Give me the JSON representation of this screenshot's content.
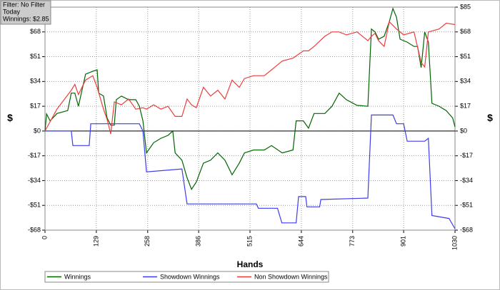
{
  "chart_data": {
    "type": "line",
    "info": [
      "Filter: No Filter",
      "Today",
      "Winnings: $2.85"
    ],
    "xlabel": "Hands",
    "ylabel": "$",
    "y2label": "$",
    "xlim": [
      0,
      1030
    ],
    "xticks": [
      0,
      129,
      258,
      386,
      515,
      644,
      773,
      901,
      1030
    ],
    "ylim": [
      -68,
      85
    ],
    "yticks": [
      {
        "value": -68,
        "label": "-$68"
      },
      {
        "value": -51,
        "label": "-$51"
      },
      {
        "value": -34,
        "label": "-$34"
      },
      {
        "value": -17,
        "label": "-$17"
      },
      {
        "value": 0,
        "label": "$0"
      },
      {
        "value": 17,
        "label": "$17"
      },
      {
        "value": 34,
        "label": "$34"
      },
      {
        "value": 51,
        "label": "$51"
      },
      {
        "value": 68,
        "label": "$68"
      },
      {
        "value": 85,
        "label": "$85"
      }
    ],
    "y2lim": [
      -68,
      85
    ],
    "y2ticks": [
      {
        "value": -68,
        "label": "-$68"
      },
      {
        "value": -51,
        "label": "-$51"
      },
      {
        "value": -34,
        "label": "-$34"
      },
      {
        "value": -17,
        "label": "-$17"
      },
      {
        "value": 0,
        "label": "$0"
      },
      {
        "value": 17,
        "label": "$17"
      },
      {
        "value": 34,
        "label": "$34"
      },
      {
        "value": 51,
        "label": "$51"
      },
      {
        "value": 68,
        "label": "$68"
      },
      {
        "value": 85,
        "label": "$85"
      }
    ],
    "grid": true,
    "series": [
      {
        "name": "Winnings",
        "color": "#006400",
        "x": [
          0,
          4,
          13,
          30,
          57,
          66,
          75,
          84,
          102,
          120,
          131,
          135,
          147,
          156,
          165,
          174,
          179,
          192,
          210,
          228,
          237,
          246,
          255,
          273,
          291,
          309,
          321,
          327,
          344,
          357,
          368,
          380,
          398,
          416,
          434,
          452,
          470,
          488,
          501,
          524,
          551,
          569,
          596,
          623,
          631,
          649,
          662,
          676,
          703,
          721,
          739,
          757,
          784,
          811,
          820,
          829,
          838,
          852,
          865,
          874,
          883,
          892,
          910,
          927,
          936,
          945,
          954,
          963,
          972,
          990,
          1008,
          1024,
          1030
        ],
        "values": [
          0,
          11.7,
          7,
          12,
          14,
          26,
          26,
          17,
          39,
          41,
          42,
          26,
          24,
          9,
          4,
          4,
          21.5,
          24,
          21.5,
          21.5,
          17,
          7,
          -15,
          -8,
          -5,
          -3,
          0,
          -15,
          -20,
          -32,
          -40,
          -35,
          -22,
          -20,
          -15,
          -20,
          -30,
          -22,
          -15,
          -13,
          -13,
          -10,
          -15,
          -13,
          7,
          7,
          2,
          12,
          12,
          17,
          26,
          21.5,
          17.6,
          17,
          70,
          68,
          63,
          65,
          75,
          84,
          78,
          63,
          61,
          58,
          58,
          43.5,
          68,
          61,
          19,
          17,
          14,
          9,
          2.85
        ]
      },
      {
        "name": "Showdown Winnings",
        "color": "#3c3cf0",
        "x": [
          0,
          66,
          70,
          111,
          115,
          237,
          246,
          255,
          344,
          357,
          531,
          536,
          584,
          595,
          631,
          637,
          655,
          658,
          690,
          693,
          811,
          820,
          874,
          883,
          901,
          910,
          954,
          963,
          972,
          1015,
          1030
        ],
        "values": [
          0,
          0,
          -10,
          -10,
          5,
          5,
          0,
          -28,
          -26,
          -50,
          -50,
          -53,
          -53,
          -63,
          -63,
          -45,
          -45,
          -52,
          -52,
          -47,
          -46,
          11,
          11,
          5,
          5,
          -7,
          -7,
          -5,
          -58,
          -60,
          -67
        ]
      },
      {
        "name": "Non Showdown Winnings",
        "color": "#f03c3c",
        "x": [
          0,
          30,
          66,
          75,
          84,
          102,
          120,
          131,
          147,
          156,
          165,
          174,
          192,
          210,
          228,
          246,
          255,
          273,
          291,
          309,
          327,
          344,
          357,
          368,
          380,
          398,
          416,
          434,
          452,
          470,
          488,
          501,
          524,
          551,
          569,
          596,
          623,
          649,
          662,
          676,
          703,
          721,
          739,
          757,
          784,
          811,
          820,
          829,
          838,
          852,
          865,
          883,
          901,
          927,
          945,
          954,
          963,
          990,
          1008,
          1030
        ],
        "values": [
          0,
          15,
          28,
          32,
          25,
          35,
          38,
          30,
          15,
          8,
          -2,
          20,
          18,
          22,
          15,
          16,
          15,
          18,
          15,
          17,
          10,
          10,
          22,
          18,
          16,
          30,
          24,
          28,
          22,
          35,
          30,
          36,
          38,
          38,
          42,
          48,
          50,
          55,
          55,
          58,
          65,
          68,
          68,
          66,
          68,
          62,
          65,
          67,
          62,
          58,
          75,
          70,
          66,
          68,
          47,
          44,
          68,
          70,
          74,
          73
        ]
      }
    ]
  }
}
